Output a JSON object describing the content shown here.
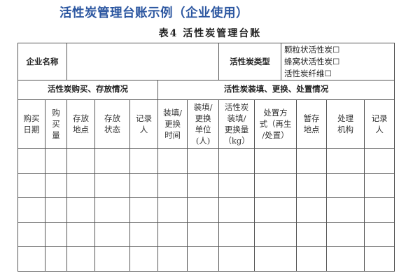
{
  "title": "活性炭管理台账示例（企业使用）",
  "table_title": "表4 活性炭管理台账",
  "info_row": {
    "company_label": "企业名称",
    "company_value": "",
    "carbon_type_label": "活性炭类型",
    "carbon_type_options": [
      "颗粒状活性炭☐",
      "蜂窝状活性炭☐",
      "活性炭纤维☐"
    ]
  },
  "sections": {
    "purchase": "活性炭购买、存放情况",
    "replace": "活性炭装填、更换、处置情况"
  },
  "columns": [
    "购买\n日期",
    "购\n买\n量",
    "存放\n地点",
    "存放\n状态",
    "记录\n人",
    "装填/\n更换\n时间",
    "装填/\n更换\n单位\n(人)",
    "活性炭\n装填/\n更换量\n（kg）",
    "处置方\n式（再生\n/处置）",
    "暂存\n地点",
    "处理\n机构",
    "记录\n人"
  ],
  "rows": [
    [
      "",
      "",
      "",
      "",
      "",
      "",
      "",
      "",
      "",
      "",
      "",
      ""
    ],
    [
      "",
      "",
      "",
      "",
      "",
      "",
      "",
      "",
      "",
      "",
      "",
      ""
    ],
    [
      "",
      "",
      "",
      "",
      "",
      "",
      "",
      "",
      "",
      "",
      "",
      ""
    ],
    [
      "",
      "",
      "",
      "",
      "",
      "",
      "",
      "",
      "",
      "",
      "",
      ""
    ],
    [
      "",
      "",
      "",
      "",
      "",
      "",
      "",
      "",
      "",
      "",
      "",
      ""
    ]
  ],
  "colors": {
    "title": "#2b56a0",
    "border": "#555555"
  }
}
